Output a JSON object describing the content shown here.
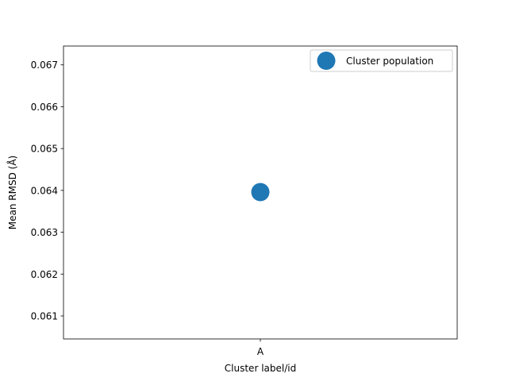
{
  "chart_data": {
    "type": "scatter",
    "title": "",
    "xlabel": "Cluster label/id",
    "ylabel": "Mean RMSD (Å)",
    "categories": [
      "A"
    ],
    "series": [
      {
        "name": "Cluster population",
        "values": [
          0.06396
        ],
        "color": "#1f77b4"
      }
    ],
    "yticks": [
      0.061,
      0.062,
      0.063,
      0.064,
      0.065,
      0.066,
      0.067
    ],
    "ylim": [
      0.06045,
      0.06745
    ],
    "grid": false,
    "legend": "top-right"
  }
}
